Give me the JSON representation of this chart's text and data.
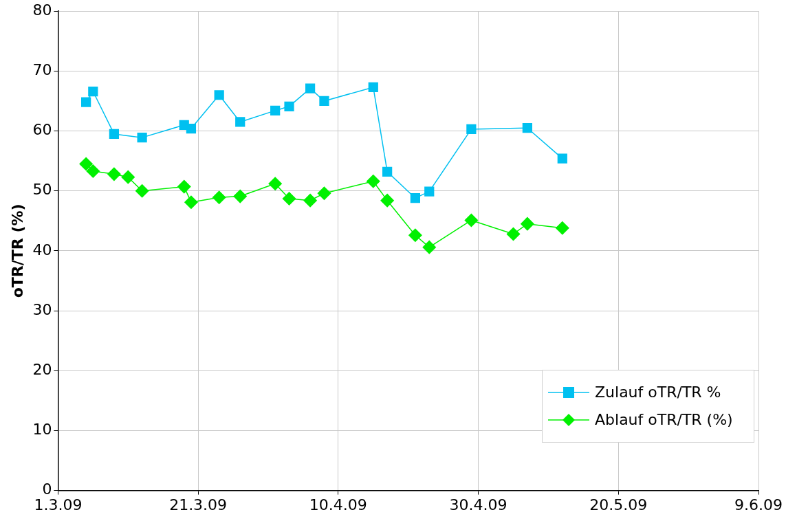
{
  "chart_data": {
    "type": "line",
    "ylabel": "oTR/TR (%)",
    "xlim": [
      "2009-03-01",
      "2009-06-09"
    ],
    "xticks": [
      {
        "value": "2009-03-01",
        "label": "1.3.09"
      },
      {
        "value": "2009-03-21",
        "label": "21.3.09"
      },
      {
        "value": "2009-04-10",
        "label": "10.4.09"
      },
      {
        "value": "2009-04-30",
        "label": "30.4.09"
      },
      {
        "value": "2009-05-20",
        "label": "20.5.09"
      },
      {
        "value": "2009-06-09",
        "label": "9.6.09"
      }
    ],
    "ylim": [
      0,
      80
    ],
    "yticks": [
      0,
      10,
      20,
      30,
      40,
      50,
      60,
      70,
      80
    ],
    "grid": true,
    "legend": "bottom right",
    "line_style": "solid",
    "series": [
      {
        "name": "Zulauf oTR/TR  %",
        "color": "#00c0f0",
        "marker": "square",
        "x": [
          "2009-03-05",
          "2009-03-06",
          "2009-03-09",
          "2009-03-13",
          "2009-03-19",
          "2009-03-20",
          "2009-03-24",
          "2009-03-27",
          "2009-04-01",
          "2009-04-03",
          "2009-04-06",
          "2009-04-08",
          "2009-04-15",
          "2009-04-17",
          "2009-04-21",
          "2009-04-23",
          "2009-04-29",
          "2009-05-07",
          "2009-05-12"
        ],
        "values": [
          64.8,
          66.6,
          59.5,
          58.9,
          61.0,
          60.4,
          66.0,
          61.5,
          63.4,
          64.1,
          67.1,
          65.0,
          67.3,
          53.2,
          48.8,
          49.9,
          60.3,
          60.5,
          55.4
        ]
      },
      {
        "name": "Ablauf oTR/TR  (%)",
        "color": "#00f000",
        "marker": "diamond",
        "x": [
          "2009-03-05",
          "2009-03-06",
          "2009-03-09",
          "2009-03-11",
          "2009-03-13",
          "2009-03-19",
          "2009-03-20",
          "2009-03-24",
          "2009-03-27",
          "2009-04-01",
          "2009-04-03",
          "2009-04-06",
          "2009-04-08",
          "2009-04-15",
          "2009-04-17",
          "2009-04-21",
          "2009-04-23",
          "2009-04-29",
          "2009-05-05",
          "2009-05-07",
          "2009-05-12"
        ],
        "values": [
          54.5,
          53.3,
          52.8,
          52.3,
          50.0,
          50.7,
          48.1,
          48.9,
          49.1,
          51.2,
          48.7,
          48.4,
          49.6,
          51.6,
          48.4,
          42.6,
          40.6,
          45.1,
          42.8,
          44.5,
          43.8
        ]
      }
    ]
  }
}
